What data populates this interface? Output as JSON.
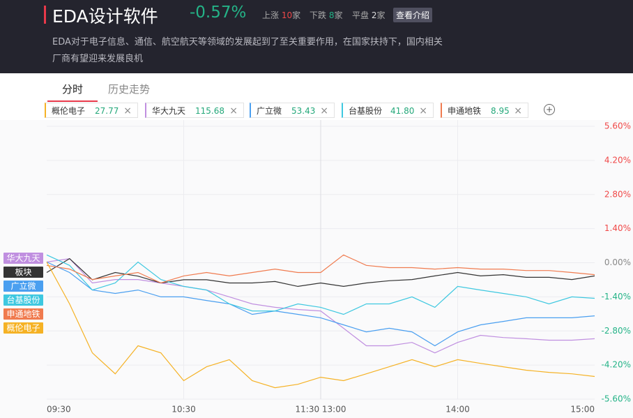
{
  "header": {
    "title": "EDA设计软件",
    "change": "-0.57%",
    "up_label": "上涨",
    "up_count": 10,
    "down_label": "下跌",
    "down_count": 8,
    "flat_label": "平盘",
    "flat_count": 2,
    "unit": "家",
    "intro_button": "查看介绍",
    "description": [
      "EDA对于电子信息、通信、航空航天等领域的发展起到了至关重要作用，在国家扶持下，国内相关",
      "厂商有望迎来发展良机"
    ]
  },
  "tabs": [
    "分时",
    "历史走势"
  ],
  "watchlist": [
    {
      "name": "概伦电子",
      "price": "27.77",
      "color": "#f5b225"
    },
    {
      "name": "华大九天",
      "price": "115.68",
      "color": "#c08fe0"
    },
    {
      "name": "广立微",
      "price": "53.43",
      "color": "#4a9ff0"
    },
    {
      "name": "台基股份",
      "price": "41.80",
      "color": "#3ec8e0"
    },
    {
      "name": "申通地铁",
      "price": "8.95",
      "color": "#f07b4f"
    }
  ],
  "chart_data": {
    "type": "line",
    "categories": [
      "09:30",
      null,
      null,
      null,
      null,
      null,
      "10:30",
      null,
      null,
      null,
      null,
      null,
      "11:30 13:00",
      null,
      null,
      null,
      null,
      null,
      "14:00",
      null,
      null,
      null,
      null,
      null,
      "15:00"
    ],
    "ylim": [
      -5.6,
      5.6
    ],
    "yticks": [
      {
        "value": 5.6,
        "label": "5.60%"
      },
      {
        "value": 4.2,
        "label": "4.20%"
      },
      {
        "value": 2.8,
        "label": "2.80%"
      },
      {
        "value": 1.4,
        "label": "1.40%"
      },
      {
        "value": 0,
        "label": "0.00%"
      },
      {
        "value": -1.4,
        "label": "-1.40%"
      },
      {
        "value": -2.8,
        "label": "-2.80%"
      },
      {
        "value": -4.2,
        "label": "-4.20%"
      },
      {
        "value": -5.6,
        "label": "-5.60%"
      }
    ],
    "grid": true,
    "series": [
      {
        "name": "华大九天",
        "color": "#c08fe0",
        "values": [
          0.03,
          0.17,
          -0.83,
          -0.69,
          -0.69,
          -0.83,
          -0.97,
          -1.12,
          -1.4,
          -1.69,
          -1.83,
          -1.92,
          -1.98,
          -2.69,
          -3.41,
          -3.41,
          -3.27,
          -3.7,
          -3.27,
          -2.98,
          -3.07,
          -3.12,
          -3.18,
          -3.18,
          -3.12
        ]
      },
      {
        "name": "板块",
        "color": "#333333",
        "values": [
          -0.4,
          0.17,
          -0.7,
          -0.4,
          -0.55,
          -0.83,
          -0.7,
          -0.7,
          -0.83,
          -0.83,
          -0.77,
          -0.97,
          -0.83,
          -0.97,
          -0.83,
          -0.74,
          -0.69,
          -0.54,
          -0.4,
          -0.54,
          -0.49,
          -0.6,
          -0.6,
          -0.69,
          -0.54
        ]
      },
      {
        "name": "广立微",
        "color": "#4a9ff0",
        "values": [
          0.03,
          -0.4,
          -1.12,
          -1.26,
          -1.12,
          -1.4,
          -1.4,
          -1.55,
          -1.69,
          -2.12,
          -1.98,
          -2.12,
          -2.26,
          -2.55,
          -2.84,
          -2.69,
          -2.84,
          -3.41,
          -2.84,
          -2.55,
          -2.41,
          -2.26,
          -2.26,
          -2.26,
          -2.18
        ]
      },
      {
        "name": "台基股份",
        "color": "#3ec8e0",
        "values": [
          0.32,
          -0.11,
          -1.12,
          -0.83,
          0.03,
          -0.69,
          -0.97,
          -1.12,
          -1.69,
          -1.98,
          -1.98,
          -1.69,
          -1.83,
          -2.12,
          -1.69,
          -1.69,
          -1.4,
          -1.83,
          -0.97,
          -1.12,
          -1.26,
          -1.4,
          -1.69,
          -1.4,
          -1.46
        ]
      },
      {
        "name": "申通地铁",
        "color": "#f07b4f",
        "values": [
          -0.11,
          -0.26,
          -0.69,
          -0.54,
          -0.4,
          -0.83,
          -0.54,
          -0.4,
          -0.54,
          -0.4,
          -0.26,
          -0.4,
          -0.4,
          0.32,
          -0.11,
          -0.2,
          -0.2,
          -0.26,
          -0.2,
          -0.26,
          -0.26,
          -0.32,
          -0.32,
          -0.4,
          -0.49
        ]
      },
      {
        "name": "概伦电子",
        "color": "#f5b225",
        "values": [
          0.03,
          -1.69,
          -3.7,
          -4.56,
          -3.41,
          -3.7,
          -4.84,
          -4.27,
          -3.98,
          -4.84,
          -5.13,
          -4.99,
          -4.7,
          -4.84,
          -4.56,
          -4.27,
          -3.98,
          -4.27,
          -3.98,
          -4.13,
          -4.27,
          -4.41,
          -4.5,
          -4.56,
          -4.67
        ]
      }
    ]
  }
}
